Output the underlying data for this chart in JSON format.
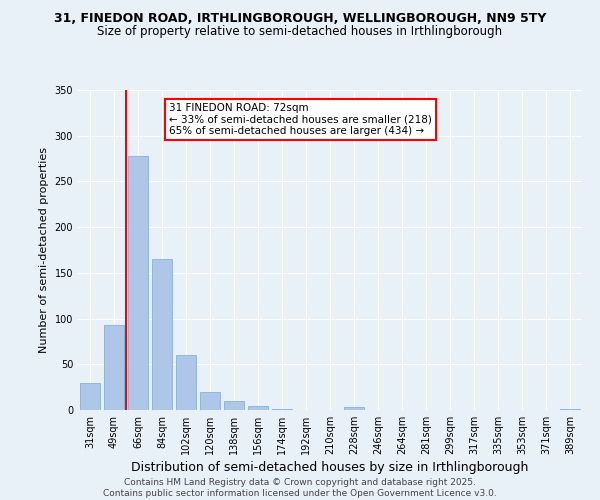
{
  "title": "31, FINEDON ROAD, IRTHLINGBOROUGH, WELLINGBOROUGH, NN9 5TY",
  "subtitle": "Size of property relative to semi-detached houses in Irthlingborough",
  "xlabel": "Distribution of semi-detached houses by size in Irthlingborough",
  "ylabel": "Number of semi-detached properties",
  "categories": [
    "31sqm",
    "49sqm",
    "66sqm",
    "84sqm",
    "102sqm",
    "120sqm",
    "138sqm",
    "156sqm",
    "174sqm",
    "192sqm",
    "210sqm",
    "228sqm",
    "246sqm",
    "264sqm",
    "281sqm",
    "299sqm",
    "317sqm",
    "335sqm",
    "353sqm",
    "371sqm",
    "389sqm"
  ],
  "values": [
    30,
    93,
    278,
    165,
    60,
    20,
    10,
    4,
    1,
    0,
    0,
    3,
    0,
    0,
    0,
    0,
    0,
    0,
    0,
    0,
    1
  ],
  "bar_color": "#aec6e8",
  "bar_edgecolor": "#7ba7d4",
  "vline_x": 1.5,
  "vline_color": "red",
  "annotation_title": "31 FINEDON ROAD: 72sqm",
  "annotation_line1": "← 33% of semi-detached houses are smaller (218)",
  "annotation_line2": "65% of semi-detached houses are larger (434) →",
  "annotation_box_color": "red",
  "ylim": [
    0,
    350
  ],
  "yticks": [
    0,
    50,
    100,
    150,
    200,
    250,
    300,
    350
  ],
  "footer_line1": "Contains HM Land Registry data © Crown copyright and database right 2025.",
  "footer_line2": "Contains public sector information licensed under the Open Government Licence v3.0.",
  "bg_color": "#e8f0f8",
  "plot_bg_color": "#e8f0f8",
  "title_fontsize": 9,
  "subtitle_fontsize": 8.5,
  "xlabel_fontsize": 9,
  "ylabel_fontsize": 8,
  "tick_fontsize": 7,
  "footer_fontsize": 6.5,
  "ann_fontsize": 7.5
}
